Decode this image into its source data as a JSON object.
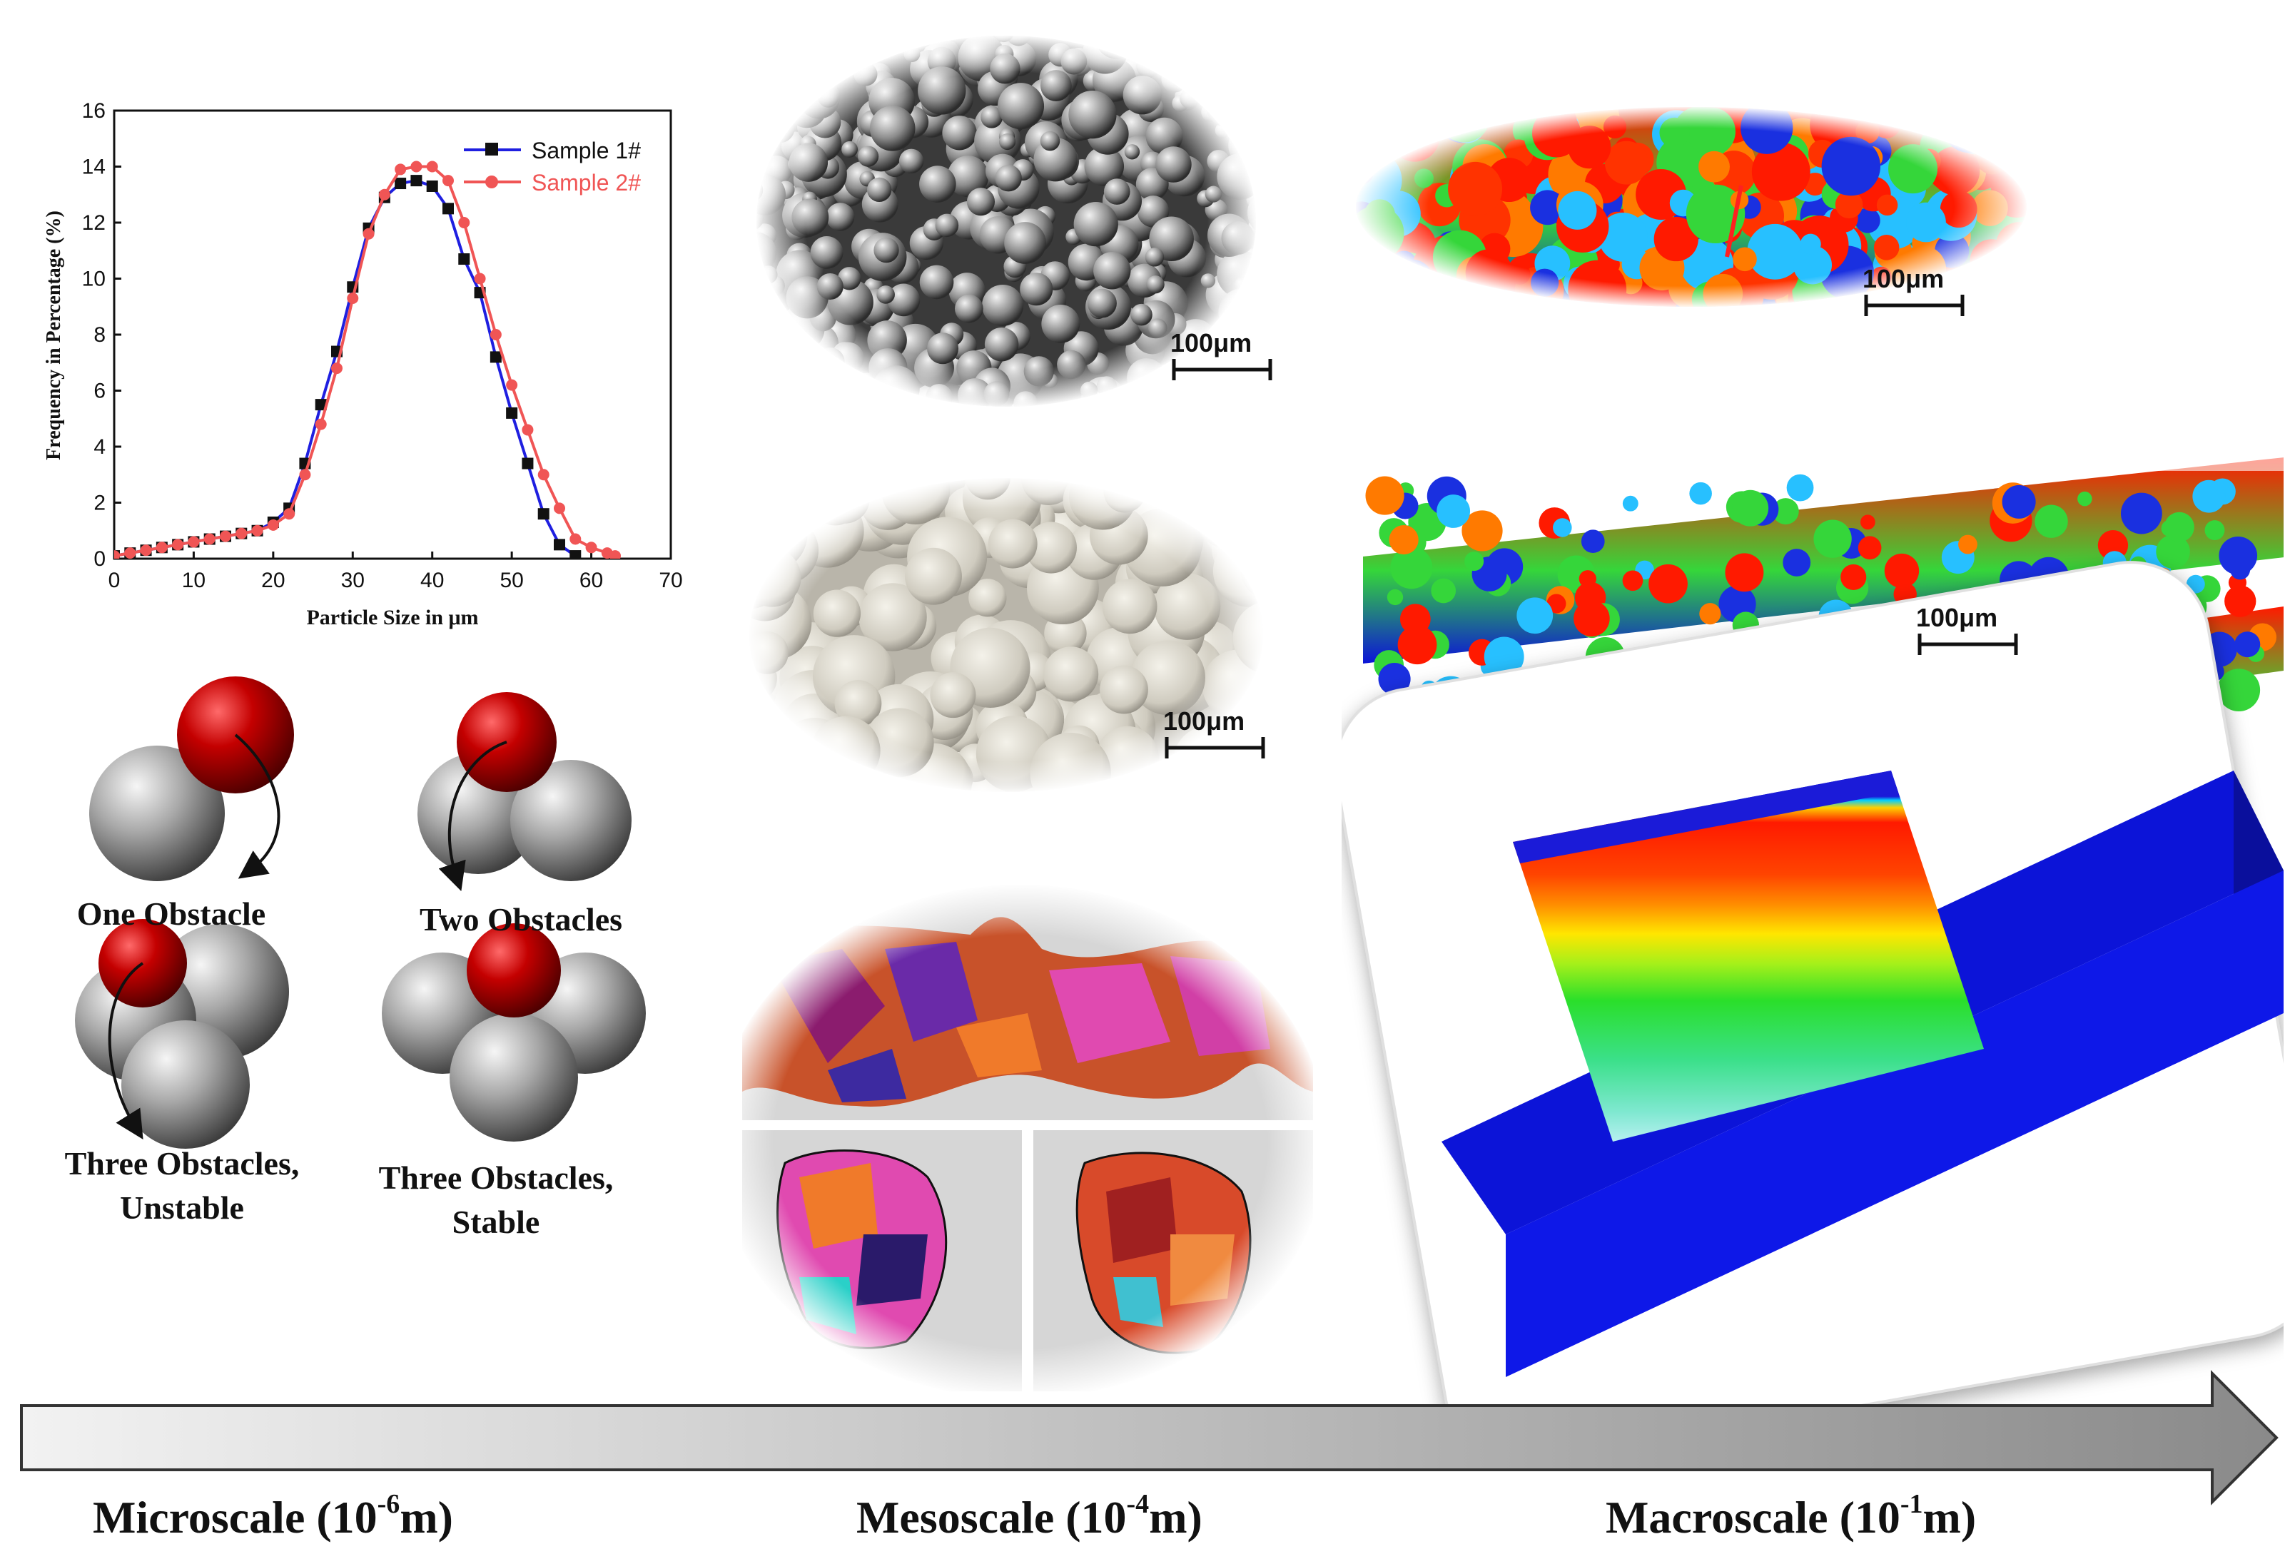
{
  "chart_data": {
    "type": "line",
    "xlabel": "Particle Size in μm",
    "ylabel": "Frequency in Percentage (%)",
    "xlim": [
      0,
      70
    ],
    "ylim": [
      0,
      16
    ],
    "xticks": [
      "0",
      "10",
      "20",
      "30",
      "40",
      "50",
      "60",
      "70"
    ],
    "yticks": [
      "0",
      "2",
      "4",
      "6",
      "8",
      "10",
      "12",
      "14",
      "16"
    ],
    "legend_position": "top-right",
    "grid": false,
    "series": [
      {
        "name": "Sample 1#",
        "color": "#1f1fe0",
        "marker": "square",
        "x": [
          0,
          2,
          4,
          6,
          8,
          10,
          12,
          14,
          16,
          18,
          20,
          22,
          24,
          26,
          28,
          30,
          32,
          34,
          36,
          38,
          40,
          42,
          44,
          46,
          48,
          50,
          52,
          54,
          56,
          58
        ],
        "y": [
          0.1,
          0.2,
          0.3,
          0.4,
          0.5,
          0.6,
          0.7,
          0.8,
          0.9,
          1.0,
          1.3,
          1.8,
          3.4,
          5.5,
          7.4,
          9.7,
          11.8,
          12.9,
          13.4,
          13.5,
          13.3,
          12.5,
          10.7,
          9.5,
          7.2,
          5.2,
          3.4,
          1.6,
          0.5,
          0.1
        ]
      },
      {
        "name": "Sample 2#",
        "color": "#f05555",
        "marker": "circle",
        "x": [
          0,
          2,
          4,
          6,
          8,
          10,
          12,
          14,
          16,
          18,
          20,
          22,
          24,
          26,
          28,
          30,
          32,
          34,
          36,
          38,
          40,
          42,
          44,
          46,
          48,
          50,
          52,
          54,
          56,
          58,
          60,
          62,
          63
        ],
        "y": [
          0.1,
          0.2,
          0.3,
          0.4,
          0.5,
          0.6,
          0.7,
          0.8,
          0.9,
          1.0,
          1.2,
          1.6,
          3.0,
          4.8,
          6.8,
          9.3,
          11.6,
          13.0,
          13.9,
          14.0,
          14.0,
          13.5,
          12.0,
          10.0,
          8.0,
          6.2,
          4.6,
          3.0,
          1.8,
          0.7,
          0.4,
          0.2,
          0.1
        ]
      }
    ]
  },
  "scalebar_label": "100μm",
  "obstacles": {
    "one": "One Obstacle",
    "two": "Two Obstacles",
    "three_unstable_1": "Three Obstacles,",
    "three_unstable_2": "Unstable",
    "three_stable_1": "Three Obstacles,",
    "three_stable_2": "Stable"
  },
  "scales": {
    "micro_text": "Microscale (10",
    "micro_exp": "-6",
    "meso_text": "Mesoscale (10",
    "meso_exp": "-4",
    "macro_text": "Macroscale (10",
    "macro_exp": "-1",
    "unit": "m)"
  },
  "colors": {
    "particle_red": "#c00000",
    "particle_gray": "#9a9a9a",
    "substrate_blue": "#0c14d8",
    "track_red": "#ff1a00",
    "track_green": "#35d63a"
  }
}
